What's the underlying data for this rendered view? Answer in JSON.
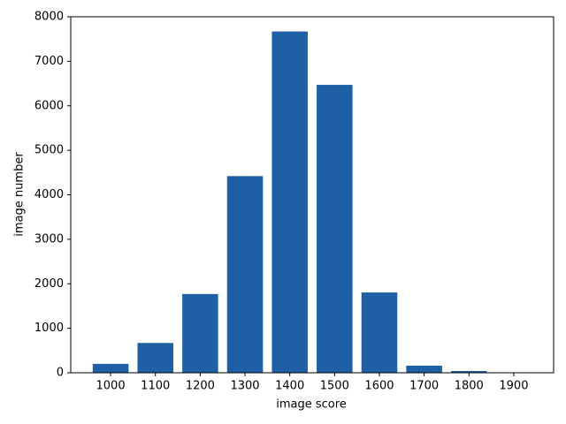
{
  "chart_data": {
    "type": "bar",
    "x": [
      1000,
      1100,
      1200,
      1300,
      1400,
      1500,
      1600,
      1700,
      1800,
      1900
    ],
    "values": [
      200,
      670,
      1770,
      4420,
      7670,
      6470,
      1805,
      160,
      40,
      0
    ],
    "color": "#1f5fa6",
    "bar_width": 80,
    "xlabel": "image score",
    "ylabel": "image number",
    "xlim": [
      911,
      1989
    ],
    "ylim": [
      0,
      8000
    ],
    "xticks": [
      1000,
      1100,
      1200,
      1300,
      1400,
      1500,
      1600,
      1700,
      1800,
      1900
    ],
    "yticks": [
      0,
      1000,
      2000,
      3000,
      4000,
      5000,
      6000,
      7000,
      8000
    ],
    "grid": false
  }
}
